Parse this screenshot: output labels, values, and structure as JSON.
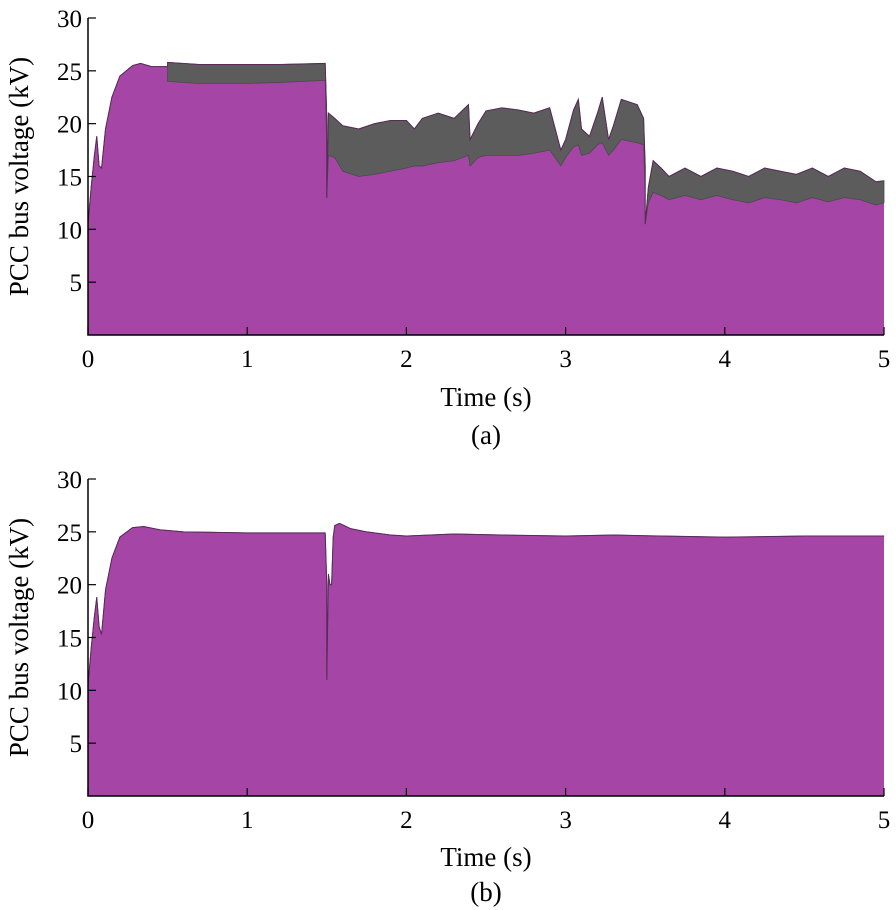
{
  "colors": {
    "area_fill": "#a545a5",
    "envelope": "#4a4a4a",
    "axis": "#000000"
  },
  "chart_data": [
    {
      "panel": "a",
      "type": "area",
      "caption": "(a)",
      "xlabel": "Time (s)",
      "ylabel": "PCC bus voltage (kV)",
      "xlim": [
        0,
        5
      ],
      "ylim": [
        0,
        30
      ],
      "xticks": [
        0,
        1,
        2,
        3,
        4,
        5
      ],
      "yticks": [
        5,
        10,
        15,
        20,
        25,
        30
      ],
      "grid": false,
      "series": [
        {
          "upper": [
            [
              0,
              10.5
            ],
            [
              0.02,
              14
            ],
            [
              0.04,
              17
            ],
            [
              0.055,
              18.8
            ],
            [
              0.07,
              16
            ],
            [
              0.085,
              15.8
            ],
            [
              0.11,
              19.5
            ],
            [
              0.15,
              22.5
            ],
            [
              0.2,
              24.5
            ],
            [
              0.28,
              25.5
            ],
            [
              0.33,
              25.7
            ],
            [
              0.4,
              25.4
            ],
            [
              0.5,
              25.4
            ],
            [
              0.5,
              25.8
            ],
            [
              0.7,
              25.6
            ],
            [
              1.0,
              25.6
            ],
            [
              1.2,
              25.6
            ],
            [
              1.49,
              25.7
            ],
            [
              1.5,
              20.5
            ],
            [
              1.5,
              13.0
            ],
            [
              1.51,
              21.0
            ],
            [
              1.55,
              20.5
            ],
            [
              1.6,
              19.8
            ],
            [
              1.7,
              19.5
            ],
            [
              1.8,
              20.0
            ],
            [
              1.9,
              20.3
            ],
            [
              2.0,
              20.3
            ],
            [
              2.05,
              19.5
            ],
            [
              2.1,
              20.5
            ],
            [
              2.2,
              21.0
            ],
            [
              2.3,
              20.5
            ],
            [
              2.39,
              21.8
            ],
            [
              2.4,
              18.5
            ],
            [
              2.45,
              20.0
            ],
            [
              2.5,
              21.2
            ],
            [
              2.6,
              21.5
            ],
            [
              2.7,
              21.3
            ],
            [
              2.8,
              21.0
            ],
            [
              2.9,
              21.5
            ],
            [
              2.97,
              17.5
            ],
            [
              3.0,
              18.5
            ],
            [
              3.05,
              21.3
            ],
            [
              3.08,
              22.3
            ],
            [
              3.1,
              19.5
            ],
            [
              3.15,
              18.8
            ],
            [
              3.2,
              21.0
            ],
            [
              3.23,
              22.5
            ],
            [
              3.27,
              18.5
            ],
            [
              3.3,
              19.8
            ],
            [
              3.35,
              22.3
            ],
            [
              3.45,
              21.8
            ],
            [
              3.49,
              20.5
            ],
            [
              3.5,
              16.0
            ],
            [
              3.5,
              10.5
            ],
            [
              3.52,
              14.0
            ],
            [
              3.55,
              16.5
            ],
            [
              3.6,
              15.8
            ],
            [
              3.65,
              15.0
            ],
            [
              3.75,
              15.8
            ],
            [
              3.85,
              15.0
            ],
            [
              3.95,
              15.8
            ],
            [
              4.05,
              15.5
            ],
            [
              4.15,
              15.0
            ],
            [
              4.25,
              15.8
            ],
            [
              4.35,
              15.5
            ],
            [
              4.45,
              15.2
            ],
            [
              4.55,
              15.8
            ],
            [
              4.65,
              15.0
            ],
            [
              4.75,
              15.8
            ],
            [
              4.85,
              15.5
            ],
            [
              4.95,
              14.5
            ],
            [
              5.0,
              14.6
            ]
          ],
          "lower": [
            [
              0,
              10.5
            ],
            [
              0.02,
              14
            ],
            [
              0.04,
              17
            ],
            [
              0.055,
              18.8
            ],
            [
              0.07,
              16
            ],
            [
              0.085,
              15.8
            ],
            [
              0.11,
              19.5
            ],
            [
              0.15,
              22.5
            ],
            [
              0.2,
              24.5
            ],
            [
              0.28,
              25.5
            ],
            [
              0.33,
              25.7
            ],
            [
              0.4,
              25.4
            ],
            [
              0.5,
              25.4
            ],
            [
              0.5,
              24.0
            ],
            [
              0.7,
              23.8
            ],
            [
              1.0,
              23.8
            ],
            [
              1.2,
              23.9
            ],
            [
              1.49,
              24.1
            ],
            [
              1.5,
              17.5
            ],
            [
              1.5,
              13.0
            ],
            [
              1.51,
              17.0
            ],
            [
              1.55,
              16.8
            ],
            [
              1.6,
              15.5
            ],
            [
              1.7,
              15.0
            ],
            [
              1.8,
              15.2
            ],
            [
              1.9,
              15.5
            ],
            [
              2.0,
              15.8
            ],
            [
              2.05,
              16.0
            ],
            [
              2.1,
              16.0
            ],
            [
              2.2,
              16.3
            ],
            [
              2.3,
              16.5
            ],
            [
              2.39,
              17.0
            ],
            [
              2.4,
              16.0
            ],
            [
              2.45,
              16.8
            ],
            [
              2.5,
              17.0
            ],
            [
              2.6,
              17.0
            ],
            [
              2.7,
              17.0
            ],
            [
              2.8,
              17.2
            ],
            [
              2.9,
              17.5
            ],
            [
              2.97,
              16.0
            ],
            [
              3.0,
              16.8
            ],
            [
              3.05,
              17.8
            ],
            [
              3.08,
              18.0
            ],
            [
              3.1,
              17.0
            ],
            [
              3.15,
              17.2
            ],
            [
              3.2,
              18.0
            ],
            [
              3.23,
              18.2
            ],
            [
              3.27,
              17.0
            ],
            [
              3.3,
              17.5
            ],
            [
              3.35,
              18.5
            ],
            [
              3.45,
              18.2
            ],
            [
              3.49,
              18.0
            ],
            [
              3.5,
              13.5
            ],
            [
              3.5,
              10.5
            ],
            [
              3.52,
              12.5
            ],
            [
              3.55,
              13.5
            ],
            [
              3.6,
              13.2
            ],
            [
              3.65,
              12.8
            ],
            [
              3.75,
              13.2
            ],
            [
              3.85,
              12.8
            ],
            [
              3.95,
              13.2
            ],
            [
              4.05,
              12.8
            ],
            [
              4.15,
              12.5
            ],
            [
              4.25,
              13.0
            ],
            [
              4.35,
              12.8
            ],
            [
              4.45,
              12.5
            ],
            [
              4.55,
              13.0
            ],
            [
              4.65,
              12.6
            ],
            [
              4.75,
              13.0
            ],
            [
              4.85,
              12.8
            ],
            [
              4.95,
              12.3
            ],
            [
              5.0,
              12.5
            ]
          ]
        }
      ]
    },
    {
      "panel": "b",
      "type": "area",
      "caption": "(b)",
      "xlabel": "Time (s)",
      "ylabel": "PCC bus voltage (kV)",
      "xlim": [
        0,
        5
      ],
      "ylim": [
        0,
        30
      ],
      "xticks": [
        0,
        1,
        2,
        3,
        4,
        5
      ],
      "yticks": [
        5,
        10,
        15,
        20,
        25,
        30
      ],
      "grid": false,
      "series": [
        {
          "upper": [
            [
              0,
              10.5
            ],
            [
              0.02,
              14
            ],
            [
              0.04,
              17
            ],
            [
              0.055,
              18.8
            ],
            [
              0.07,
              16
            ],
            [
              0.085,
              15.3
            ],
            [
              0.11,
              19.5
            ],
            [
              0.15,
              22.5
            ],
            [
              0.2,
              24.5
            ],
            [
              0.28,
              25.4
            ],
            [
              0.35,
              25.5
            ],
            [
              0.45,
              25.2
            ],
            [
              0.6,
              25.0
            ],
            [
              1.0,
              24.9
            ],
            [
              1.49,
              24.9
            ],
            [
              1.5,
              20.0
            ],
            [
              1.5,
              11.0
            ],
            [
              1.51,
              21.0
            ],
            [
              1.52,
              20.0
            ],
            [
              1.53,
              20.0
            ],
            [
              1.54,
              24.5
            ],
            [
              1.55,
              25.6
            ],
            [
              1.58,
              25.8
            ],
            [
              1.65,
              25.3
            ],
            [
              1.75,
              25.0
            ],
            [
              1.9,
              24.7
            ],
            [
              2.0,
              24.6
            ],
            [
              2.3,
              24.8
            ],
            [
              2.6,
              24.7
            ],
            [
              3.0,
              24.6
            ],
            [
              3.3,
              24.7
            ],
            [
              3.6,
              24.6
            ],
            [
              4.0,
              24.5
            ],
            [
              4.5,
              24.6
            ],
            [
              5.0,
              24.6
            ]
          ],
          "lower": [
            [
              0,
              10.5
            ],
            [
              0.02,
              14
            ],
            [
              0.04,
              17
            ],
            [
              0.055,
              18.8
            ],
            [
              0.07,
              16
            ],
            [
              0.085,
              15.3
            ],
            [
              0.11,
              19.5
            ],
            [
              0.15,
              22.5
            ],
            [
              0.2,
              24.5
            ],
            [
              0.28,
              25.4
            ],
            [
              0.35,
              25.5
            ],
            [
              0.45,
              25.2
            ],
            [
              0.6,
              25.0
            ],
            [
              1.0,
              24.9
            ],
            [
              1.49,
              24.9
            ],
            [
              1.5,
              20.0
            ],
            [
              1.5,
              11.0
            ],
            [
              1.51,
              21.0
            ],
            [
              1.52,
              20.0
            ],
            [
              1.53,
              20.0
            ],
            [
              1.54,
              24.5
            ],
            [
              1.55,
              25.6
            ],
            [
              1.58,
              25.8
            ],
            [
              1.65,
              25.3
            ],
            [
              1.75,
              25.0
            ],
            [
              1.9,
              24.7
            ],
            [
              2.0,
              24.6
            ],
            [
              2.3,
              24.8
            ],
            [
              2.6,
              24.7
            ],
            [
              3.0,
              24.6
            ],
            [
              3.3,
              24.7
            ],
            [
              3.6,
              24.6
            ],
            [
              4.0,
              24.5
            ],
            [
              4.5,
              24.6
            ],
            [
              5.0,
              24.6
            ]
          ]
        }
      ]
    }
  ]
}
